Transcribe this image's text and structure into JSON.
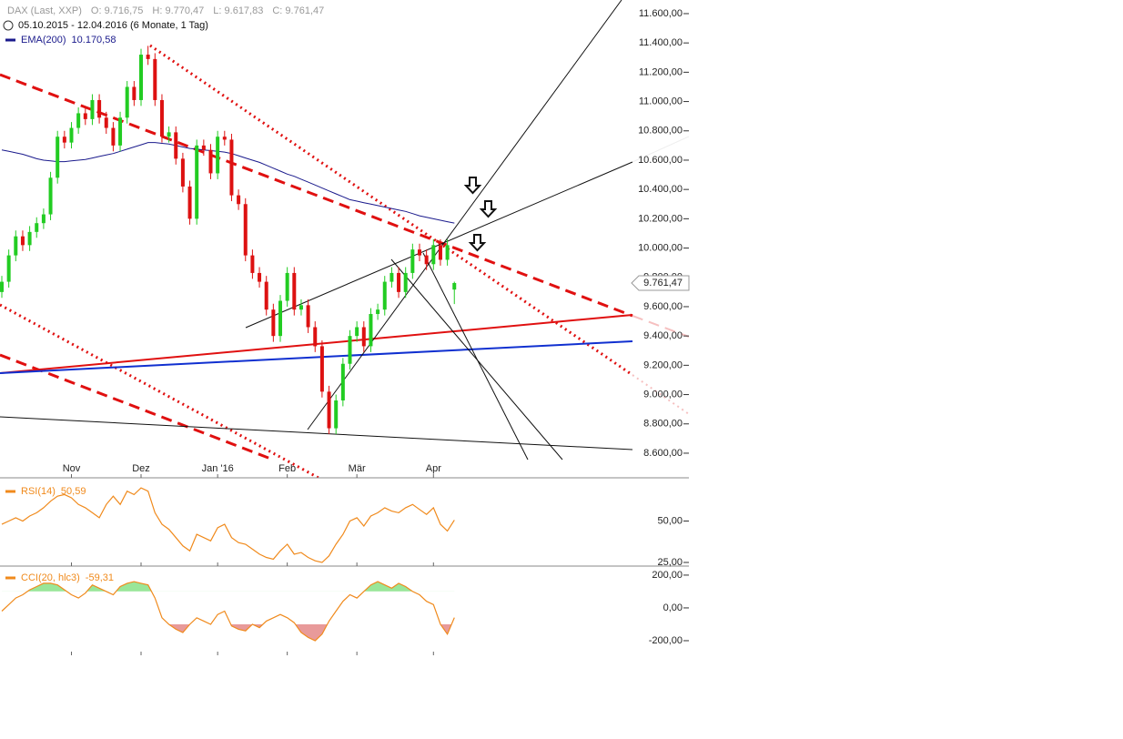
{
  "chart_data": [
    {
      "type": "candlestick",
      "title": "DAX (Last, XXP)",
      "ohlc_labels": [
        "O: 9.716,75",
        "H: 9.770,47",
        "L: 9.617,83",
        "C: 9.761,47"
      ],
      "subtitle": "05.10.2015 - 12.04.2016 (6 Monate, 1 Tag)",
      "categories": [
        null,
        null,
        null,
        null,
        null,
        null,
        null,
        null,
        null,
        null,
        "Nov",
        null,
        null,
        null,
        null,
        null,
        null,
        null,
        null,
        null,
        "Dez",
        null,
        null,
        null,
        null,
        null,
        null,
        null,
        null,
        null,
        null,
        "Jan '16",
        null,
        null,
        null,
        null,
        null,
        null,
        null,
        null,
        null,
        "Feb",
        null,
        null,
        null,
        null,
        null,
        null,
        null,
        null,
        null,
        "Mär",
        null,
        null,
        null,
        null,
        null,
        null,
        null,
        null,
        null,
        null,
        "Apr",
        null,
        null,
        null
      ],
      "candles": [
        [
          9700,
          9810,
          9660,
          9770
        ],
        [
          9770,
          9990,
          9730,
          9950
        ],
        [
          9950,
          10120,
          9910,
          10080
        ],
        [
          10080,
          10120,
          9980,
          10020
        ],
        [
          10020,
          10150,
          9980,
          10110
        ],
        [
          10110,
          10210,
          10070,
          10170
        ],
        [
          10170,
          10270,
          10130,
          10230
        ],
        [
          10230,
          10520,
          10190,
          10480
        ],
        [
          10480,
          10800,
          10440,
          10760
        ],
        [
          10760,
          10800,
          10680,
          10720
        ],
        [
          10720,
          10860,
          10680,
          10820
        ],
        [
          10820,
          10960,
          10780,
          10920
        ],
        [
          10920,
          10960,
          10840,
          10880
        ],
        [
          10880,
          11050,
          10840,
          11010
        ],
        [
          11010,
          11050,
          10850,
          10890
        ],
        [
          10890,
          10930,
          10780,
          10820
        ],
        [
          10820,
          10860,
          10660,
          10700
        ],
        [
          10700,
          10930,
          10660,
          10890
        ],
        [
          10890,
          11140,
          10850,
          11100
        ],
        [
          11100,
          11140,
          10970,
          11010
        ],
        [
          11010,
          11360,
          10970,
          11320
        ],
        [
          11320,
          11380,
          11250,
          11290
        ],
        [
          11290,
          11330,
          10970,
          11010
        ],
        [
          11010,
          11050,
          10720,
          10760
        ],
        [
          10760,
          10830,
          10720,
          10790
        ],
        [
          10790,
          10830,
          10570,
          10610
        ],
        [
          10610,
          10650,
          10380,
          10420
        ],
        [
          10420,
          10460,
          10160,
          10200
        ],
        [
          10200,
          10740,
          10160,
          10700
        ],
        [
          10700,
          10740,
          10630,
          10670
        ],
        [
          10670,
          10710,
          10470,
          10510
        ],
        [
          10510,
          10800,
          10470,
          10760
        ],
        [
          10760,
          10800,
          10700,
          10740
        ],
        [
          10740,
          10780,
          10320,
          10360
        ],
        [
          10360,
          10400,
          10260,
          10300
        ],
        [
          10300,
          10340,
          9910,
          9950
        ],
        [
          9950,
          9990,
          9790,
          9830
        ],
        [
          9830,
          9870,
          9730,
          9770
        ],
        [
          9770,
          9810,
          9540,
          9580
        ],
        [
          9580,
          9620,
          9360,
          9400
        ],
        [
          9400,
          9680,
          9360,
          9640
        ],
        [
          9640,
          9870,
          9600,
          9830
        ],
        [
          9830,
          9870,
          9540,
          9580
        ],
        [
          9580,
          9650,
          9540,
          9610
        ],
        [
          9610,
          9650,
          9420,
          9460
        ],
        [
          9460,
          9500,
          9290,
          9330
        ],
        [
          9330,
          9370,
          8980,
          9020
        ],
        [
          9020,
          9060,
          8730,
          8770
        ],
        [
          8770,
          9000,
          8730,
          8960
        ],
        [
          8960,
          9250,
          8920,
          9210
        ],
        [
          9210,
          9440,
          9170,
          9400
        ],
        [
          9400,
          9500,
          9360,
          9460
        ],
        [
          9460,
          9500,
          9290,
          9330
        ],
        [
          9330,
          9590,
          9290,
          9550
        ],
        [
          9550,
          9620,
          9510,
          9580
        ],
        [
          9580,
          9810,
          9540,
          9770
        ],
        [
          9770,
          9870,
          9730,
          9830
        ],
        [
          9830,
          9870,
          9660,
          9700
        ],
        [
          9700,
          9870,
          9660,
          9830
        ],
        [
          9830,
          10030,
          9790,
          9990
        ],
        [
          9990,
          10030,
          9910,
          9950
        ],
        [
          9950,
          9990,
          9850,
          9890
        ],
        [
          9890,
          10060,
          9850,
          10020
        ],
        [
          10020,
          10060,
          9880,
          9920
        ],
        [
          9920,
          10060,
          9880,
          10020
        ],
        [
          9716.75,
          9770.47,
          9617.83,
          9761.47
        ]
      ],
      "up_color": "#22cc22",
      "down_color": "#dd1111",
      "series": [
        {
          "name": "EMA(200)",
          "color": "#1a1a8c",
          "last_label": "10.170,58",
          "values": [
            10670,
            10660,
            10650,
            10640,
            10625,
            10610,
            10600,
            10595,
            10590,
            10590,
            10595,
            10600,
            10605,
            10615,
            10625,
            10635,
            10645,
            10660,
            10675,
            10690,
            10705,
            10720,
            10720,
            10715,
            10710,
            10700,
            10690,
            10680,
            10675,
            10670,
            10665,
            10660,
            10655,
            10645,
            10630,
            10615,
            10600,
            10585,
            10565,
            10545,
            10525,
            10505,
            10490,
            10470,
            10450,
            10430,
            10410,
            10390,
            10370,
            10350,
            10330,
            10320,
            10310,
            10300,
            10290,
            10280,
            10270,
            10260,
            10250,
            10235,
            10220,
            10210,
            10200,
            10190,
            10180,
            10170.58
          ]
        }
      ],
      "last_label": "9.761,47",
      "ylim": [
        8432,
        11693
      ],
      "yticks": [
        {
          "value": 8600,
          "label": "8.600,00"
        },
        {
          "value": 8800,
          "label": "8.800,00"
        },
        {
          "value": 9000,
          "label": "9.000,00"
        },
        {
          "value": 9200,
          "label": "9.200,00"
        },
        {
          "value": 9400,
          "label": "9.400,00"
        },
        {
          "value": 9600,
          "label": "9.600,00"
        },
        {
          "value": 9800,
          "label": "9.800,00"
        },
        {
          "value": 10000,
          "label": "10.000,00"
        },
        {
          "value": 10200,
          "label": "10.200,00"
        },
        {
          "value": 10400,
          "label": "10.400,00"
        },
        {
          "value": 10600,
          "label": "10.600,00"
        },
        {
          "value": 10800,
          "label": "10.800,00"
        },
        {
          "value": 11000,
          "label": "11.000,00"
        },
        {
          "value": 11200,
          "label": "11.200,00"
        },
        {
          "value": 11400,
          "label": "11.400,00"
        },
        {
          "value": 11600,
          "label": "11.600,00"
        }
      ]
    },
    {
      "type": "line",
      "series": [
        {
          "name": "RSI(14)",
          "color": "#f08a1c",
          "last_label": "50,59",
          "values": [
            48,
            50,
            52,
            50,
            53,
            55,
            58,
            62,
            65,
            66,
            64,
            60,
            58,
            55,
            52,
            60,
            65,
            60,
            68,
            66,
            70,
            68,
            55,
            48,
            45,
            40,
            35,
            32,
            42,
            40,
            38,
            46,
            48,
            40,
            37,
            36,
            33,
            30,
            28,
            27,
            32,
            36,
            30,
            31,
            28,
            26,
            25,
            29,
            36,
            42,
            50,
            52,
            47,
            53,
            55,
            58,
            56,
            55,
            58,
            60,
            57,
            54,
            58,
            48,
            44,
            50.59
          ]
        }
      ],
      "ylim": [
        22.8,
        75
      ],
      "yticks": [
        {
          "value": 50,
          "label": "50,00"
        },
        {
          "value": 25,
          "label": "25,00"
        }
      ]
    },
    {
      "type": "line",
      "series": [
        {
          "name": "CCI(20, hlc3)",
          "color": "#f08a1c",
          "last_label": "-59,31",
          "values": [
            -20,
            20,
            60,
            80,
            110,
            130,
            150,
            150,
            140,
            110,
            80,
            60,
            90,
            140,
            120,
            100,
            80,
            130,
            150,
            160,
            150,
            140,
            60,
            -60,
            -100,
            -130,
            -150,
            -100,
            -60,
            -80,
            -100,
            -40,
            -20,
            -110,
            -130,
            -140,
            -100,
            -120,
            -80,
            -60,
            -40,
            -60,
            -90,
            -150,
            -180,
            -200,
            -160,
            -80,
            -20,
            40,
            80,
            60,
            100,
            140,
            160,
            140,
            120,
            150,
            130,
            100,
            80,
            40,
            20,
            -100,
            -160,
            -59.31
          ]
        }
      ],
      "overbought": 100,
      "oversold": -100,
      "overbought_color": "#99e699",
      "oversold_color": "#e89a9a",
      "ylim": [
        -289,
        244
      ],
      "yticks": [
        {
          "value": 200,
          "label": "200,00"
        },
        {
          "value": 0,
          "label": "0,00"
        },
        {
          "value": -200,
          "label": "-200,00"
        }
      ]
    }
  ]
}
